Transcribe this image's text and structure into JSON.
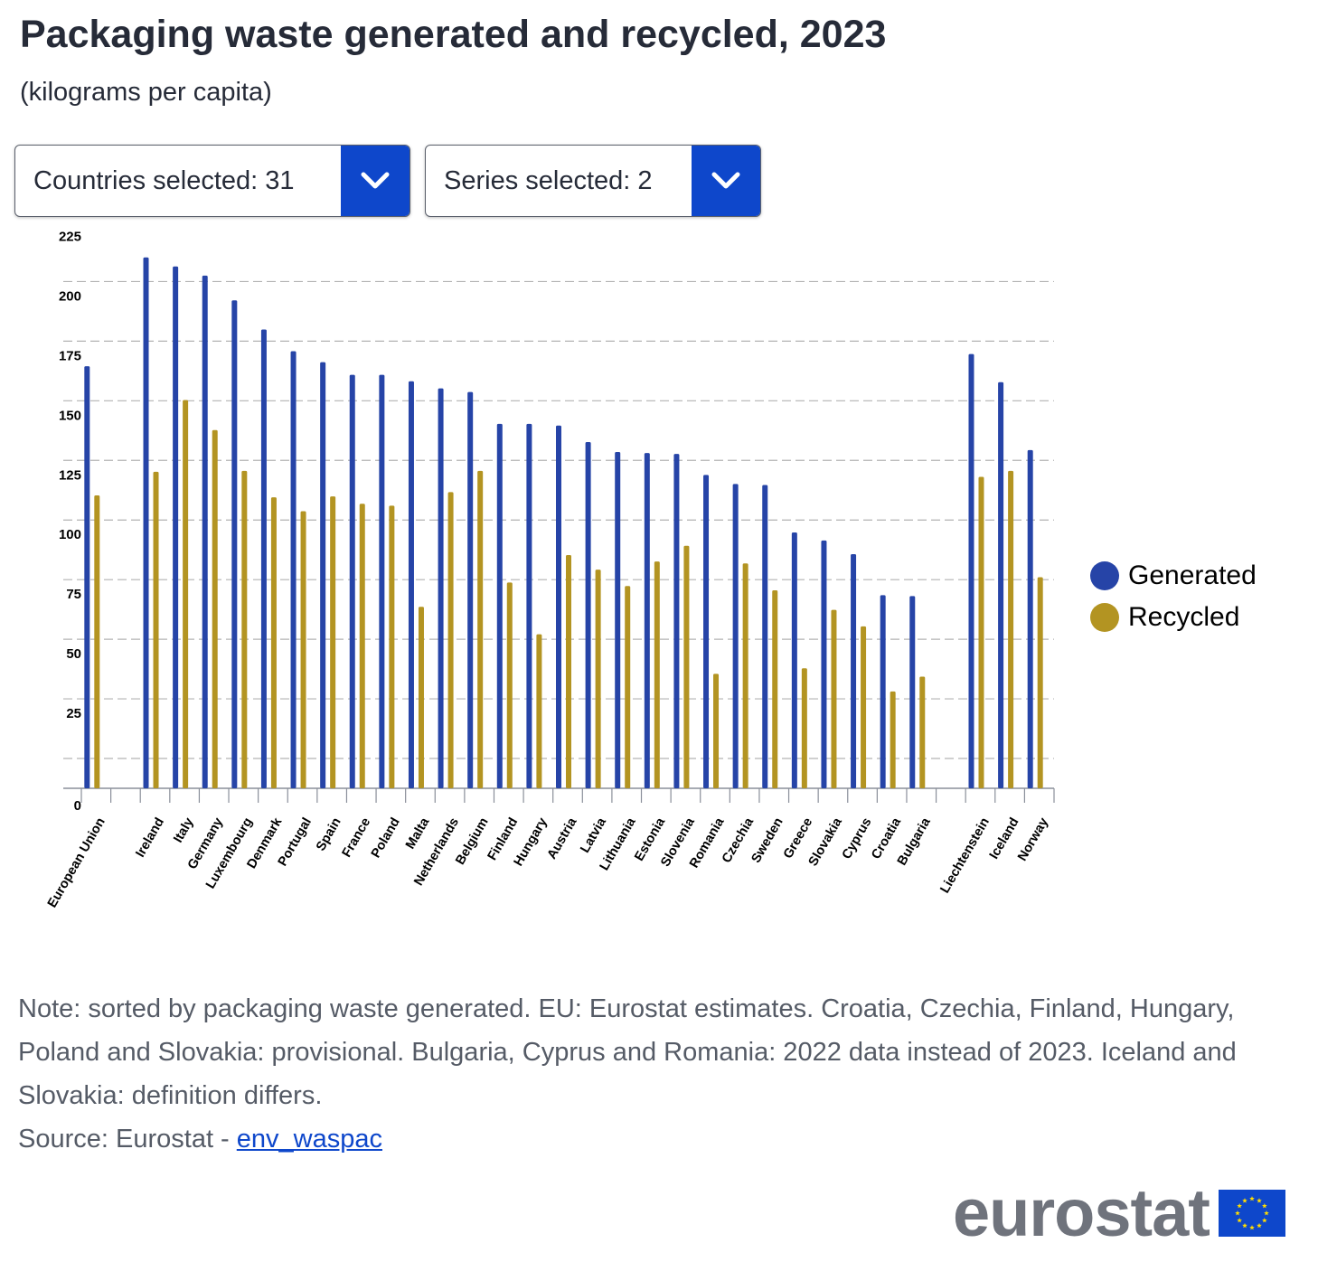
{
  "header": {
    "title": "Packaging waste generated and recycled, 2023",
    "subtitle": "(kilograms per capita)"
  },
  "filters": {
    "countries_label": "Countries selected: 31",
    "series_label": "Series selected: 2",
    "button_color": "#0e47cb"
  },
  "chart_data": {
    "type": "bar",
    "title": "Packaging waste generated and recycled, 2023",
    "ylabel": "kilograms per capita",
    "xlabel": "",
    "ylim": [
      0,
      225
    ],
    "yticks": [
      0,
      25,
      50,
      75,
      100,
      125,
      150,
      175,
      200,
      225
    ],
    "grid": true,
    "legend_position": "right",
    "categories": [
      "European Union",
      "",
      "Ireland",
      "Italy",
      "Germany",
      "Luxembourg",
      "Denmark",
      "Portugal",
      "Spain",
      "France",
      "Poland",
      "Malta",
      "Netherlands",
      "Belgium",
      "Finland",
      "Hungary",
      "Austria",
      "Latvia",
      "Lithuania",
      "Estonia",
      "Slovenia",
      "Romania",
      "Czechia",
      "Sweden",
      "Greece",
      "Slovakia",
      "Cyprus",
      "Croatia",
      "Bulgaria",
      "",
      "Liechtenstein",
      "Iceland",
      "Norway"
    ],
    "series": [
      {
        "name": "Generated",
        "color": "#2644a7",
        "values": [
          177.0,
          null,
          222.6,
          218.8,
          215.0,
          204.6,
          192.4,
          183.3,
          178.7,
          173.4,
          173.4,
          170.7,
          167.7,
          166.2,
          152.8,
          152.8,
          152.1,
          145.2,
          141.0,
          140.6,
          140.2,
          131.4,
          127.6,
          127.2,
          107.3,
          103.9,
          98.2,
          81.0,
          80.6,
          null,
          182.1,
          170.3,
          141.8
        ]
      },
      {
        "name": "Recycled",
        "color": "#b39422",
        "values": [
          122.8,
          null,
          132.7,
          162.8,
          150.2,
          133.1,
          122.0,
          116.2,
          122.4,
          119.3,
          118.5,
          76.1,
          124.2,
          133.1,
          86.3,
          64.6,
          97.8,
          91.7,
          84.8,
          95.1,
          101.7,
          48.0,
          94.3,
          83.0,
          50.3,
          74.8,
          67.9,
          40.6,
          46.8,
          null,
          130.6,
          133.1,
          88.5
        ]
      }
    ]
  },
  "legend": {
    "items": [
      {
        "label": "Generated",
        "color": "#2644a7"
      },
      {
        "label": "Recycled",
        "color": "#b39422"
      }
    ]
  },
  "footer": {
    "note": "Note: sorted by packaging waste generated. EU: Eurostat estimates. Croatia, Czechia, Finland, Hungary, Poland and Slovakia: provisional. Bulgaria, Cyprus and Romania: 2022 data instead of 2023. Iceland and Slovakia: definition differs.",
    "source_prefix": "Source: Eurostat - ",
    "source_link": "env_waspac"
  },
  "logo": {
    "text": "eurostat",
    "flag_icon": "eu-flag-icon"
  }
}
